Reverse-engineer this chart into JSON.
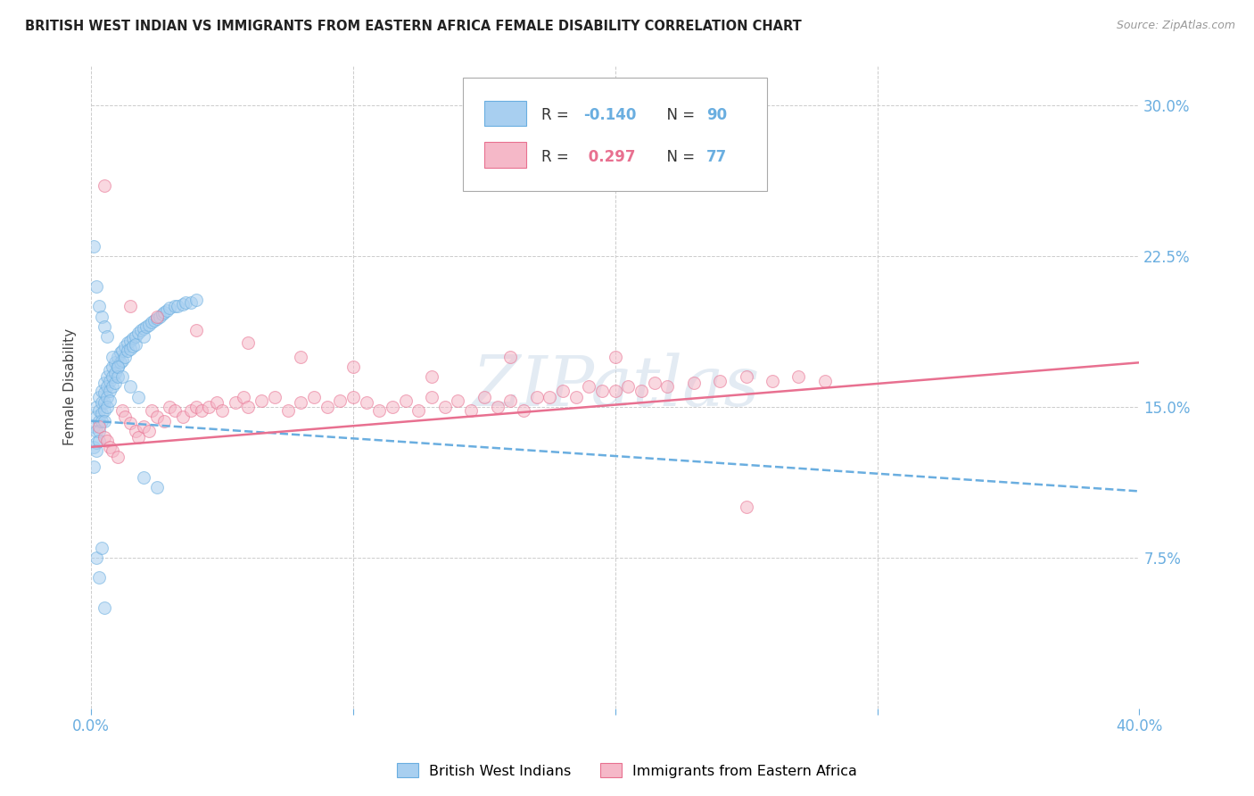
{
  "title": "BRITISH WEST INDIAN VS IMMIGRANTS FROM EASTERN AFRICA FEMALE DISABILITY CORRELATION CHART",
  "source": "Source: ZipAtlas.com",
  "ylabel": "Female Disability",
  "xlim": [
    0.0,
    0.4
  ],
  "ylim": [
    0.0,
    0.32
  ],
  "grid_color": "#cccccc",
  "background_color": "#ffffff",
  "blue_color": "#a8cff0",
  "pink_color": "#f5b8c8",
  "blue_line_color": "#6aaee0",
  "pink_line_color": "#e87090",
  "blue_R": -0.14,
  "blue_N": 90,
  "pink_R": 0.297,
  "pink_N": 77,
  "legend_label_blue": "British West Indians",
  "legend_label_pink": "Immigrants from Eastern Africa",
  "watermark": "ZIPatlas",
  "tick_color": "#6aaee0",
  "blue_scatter_x": [
    0.001,
    0.001,
    0.001,
    0.002,
    0.002,
    0.002,
    0.002,
    0.002,
    0.003,
    0.003,
    0.003,
    0.003,
    0.003,
    0.004,
    0.004,
    0.004,
    0.004,
    0.005,
    0.005,
    0.005,
    0.005,
    0.005,
    0.006,
    0.006,
    0.006,
    0.006,
    0.007,
    0.007,
    0.007,
    0.007,
    0.008,
    0.008,
    0.008,
    0.009,
    0.009,
    0.009,
    0.01,
    0.01,
    0.01,
    0.011,
    0.011,
    0.012,
    0.012,
    0.013,
    0.013,
    0.014,
    0.014,
    0.015,
    0.015,
    0.016,
    0.016,
    0.017,
    0.017,
    0.018,
    0.019,
    0.02,
    0.02,
    0.021,
    0.022,
    0.023,
    0.024,
    0.025,
    0.026,
    0.027,
    0.028,
    0.029,
    0.03,
    0.032,
    0.033,
    0.035,
    0.036,
    0.038,
    0.04,
    0.001,
    0.002,
    0.003,
    0.004,
    0.005,
    0.006,
    0.008,
    0.01,
    0.012,
    0.015,
    0.018,
    0.02,
    0.025,
    0.002,
    0.003,
    0.004,
    0.005
  ],
  "blue_scatter_y": [
    0.14,
    0.13,
    0.12,
    0.15,
    0.145,
    0.138,
    0.132,
    0.128,
    0.155,
    0.148,
    0.143,
    0.138,
    0.133,
    0.158,
    0.152,
    0.147,
    0.143,
    0.162,
    0.157,
    0.152,
    0.148,
    0.143,
    0.165,
    0.16,
    0.155,
    0.15,
    0.168,
    0.163,
    0.158,
    0.153,
    0.17,
    0.165,
    0.16,
    0.172,
    0.167,
    0.162,
    0.175,
    0.17,
    0.165,
    0.177,
    0.172,
    0.178,
    0.173,
    0.18,
    0.175,
    0.182,
    0.178,
    0.183,
    0.179,
    0.184,
    0.18,
    0.185,
    0.181,
    0.187,
    0.188,
    0.189,
    0.185,
    0.19,
    0.191,
    0.192,
    0.193,
    0.194,
    0.195,
    0.196,
    0.197,
    0.198,
    0.199,
    0.2,
    0.2,
    0.201,
    0.202,
    0.202,
    0.203,
    0.23,
    0.21,
    0.2,
    0.195,
    0.19,
    0.185,
    0.175,
    0.17,
    0.165,
    0.16,
    0.155,
    0.115,
    0.11,
    0.075,
    0.065,
    0.08,
    0.05
  ],
  "pink_scatter_x": [
    0.003,
    0.005,
    0.006,
    0.007,
    0.008,
    0.01,
    0.012,
    0.013,
    0.015,
    0.017,
    0.018,
    0.02,
    0.022,
    0.023,
    0.025,
    0.028,
    0.03,
    0.032,
    0.035,
    0.038,
    0.04,
    0.042,
    0.045,
    0.048,
    0.05,
    0.055,
    0.058,
    0.06,
    0.065,
    0.07,
    0.075,
    0.08,
    0.085,
    0.09,
    0.095,
    0.1,
    0.105,
    0.11,
    0.115,
    0.12,
    0.125,
    0.13,
    0.135,
    0.14,
    0.145,
    0.15,
    0.155,
    0.16,
    0.165,
    0.17,
    0.175,
    0.18,
    0.185,
    0.19,
    0.195,
    0.2,
    0.205,
    0.21,
    0.215,
    0.22,
    0.23,
    0.24,
    0.25,
    0.26,
    0.27,
    0.28,
    0.005,
    0.015,
    0.025,
    0.04,
    0.06,
    0.08,
    0.1,
    0.13,
    0.16,
    0.2,
    0.25
  ],
  "pink_scatter_y": [
    0.14,
    0.135,
    0.133,
    0.13,
    0.128,
    0.125,
    0.148,
    0.145,
    0.142,
    0.138,
    0.135,
    0.14,
    0.138,
    0.148,
    0.145,
    0.143,
    0.15,
    0.148,
    0.145,
    0.148,
    0.15,
    0.148,
    0.15,
    0.152,
    0.148,
    0.152,
    0.155,
    0.15,
    0.153,
    0.155,
    0.148,
    0.152,
    0.155,
    0.15,
    0.153,
    0.155,
    0.152,
    0.148,
    0.15,
    0.153,
    0.148,
    0.155,
    0.15,
    0.153,
    0.148,
    0.155,
    0.15,
    0.153,
    0.148,
    0.155,
    0.155,
    0.158,
    0.155,
    0.16,
    0.158,
    0.158,
    0.16,
    0.158,
    0.162,
    0.16,
    0.162,
    0.163,
    0.165,
    0.163,
    0.165,
    0.163,
    0.26,
    0.2,
    0.195,
    0.188,
    0.182,
    0.175,
    0.17,
    0.165,
    0.175,
    0.175,
    0.1
  ]
}
